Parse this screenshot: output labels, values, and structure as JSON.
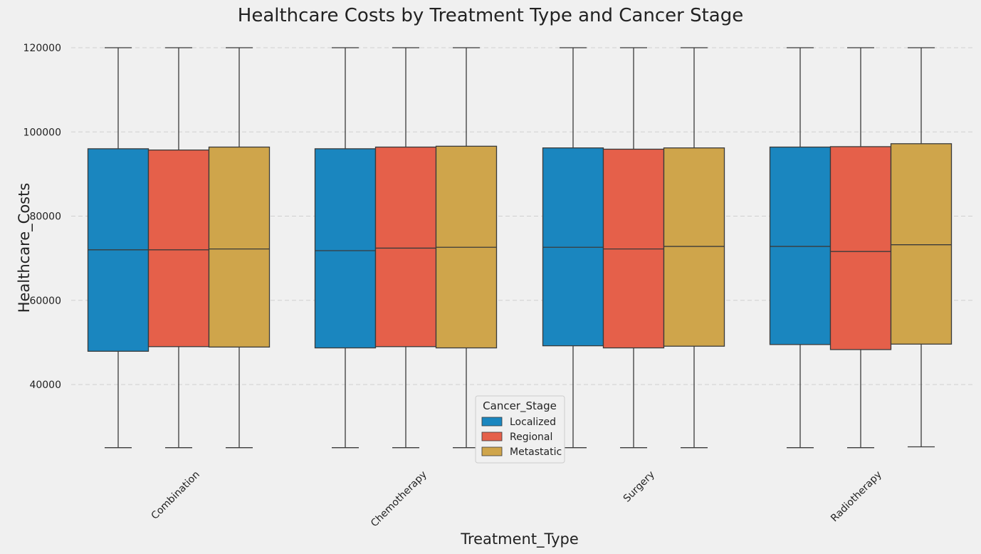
{
  "chart_data": {
    "type": "box",
    "title": "Healthcare Costs by Treatment Type and Cancer Stage",
    "xlabel": "Treatment_Type",
    "ylabel": "Healthcare_Costs",
    "ylim": [
      22000,
      122000
    ],
    "yticks": [
      40000,
      60000,
      80000,
      100000,
      120000
    ],
    "grid": "horizontal-dashed",
    "legend": {
      "title": "Cancer_Stage",
      "placement": "lower-center"
    },
    "categories": [
      "Combination",
      "Chemotherapy",
      "Surgery",
      "Radiotherapy"
    ],
    "series": [
      {
        "name": "Localized",
        "color": "#1a86bf",
        "boxes": [
          {
            "whislo": 25000,
            "q1": 47900,
            "med": 72000,
            "q3": 96000,
            "whishi": 120000
          },
          {
            "whislo": 25000,
            "q1": 48700,
            "med": 71800,
            "q3": 96000,
            "whishi": 120000
          },
          {
            "whislo": 25000,
            "q1": 49200,
            "med": 72600,
            "q3": 96200,
            "whishi": 120000
          },
          {
            "whislo": 25000,
            "q1": 49500,
            "med": 72800,
            "q3": 96400,
            "whishi": 120000
          }
        ]
      },
      {
        "name": "Regional",
        "color": "#e5604a",
        "boxes": [
          {
            "whislo": 25000,
            "q1": 49000,
            "med": 72000,
            "q3": 95700,
            "whishi": 120000
          },
          {
            "whislo": 25000,
            "q1": 49000,
            "med": 72400,
            "q3": 96400,
            "whishi": 120000
          },
          {
            "whislo": 25000,
            "q1": 48700,
            "med": 72200,
            "q3": 95900,
            "whishi": 120000
          },
          {
            "whislo": 25000,
            "q1": 48300,
            "med": 71600,
            "q3": 96500,
            "whishi": 120000
          }
        ]
      },
      {
        "name": "Metastatic",
        "color": "#cfa54b",
        "boxes": [
          {
            "whislo": 25000,
            "q1": 48900,
            "med": 72200,
            "q3": 96400,
            "whishi": 120000
          },
          {
            "whislo": 25000,
            "q1": 48700,
            "med": 72600,
            "q3": 96600,
            "whishi": 120000
          },
          {
            "whislo": 25000,
            "q1": 49100,
            "med": 72800,
            "q3": 96200,
            "whishi": 120000
          },
          {
            "whislo": 25200,
            "q1": 49600,
            "med": 73200,
            "q3": 97200,
            "whishi": 120000
          }
        ]
      }
    ]
  }
}
